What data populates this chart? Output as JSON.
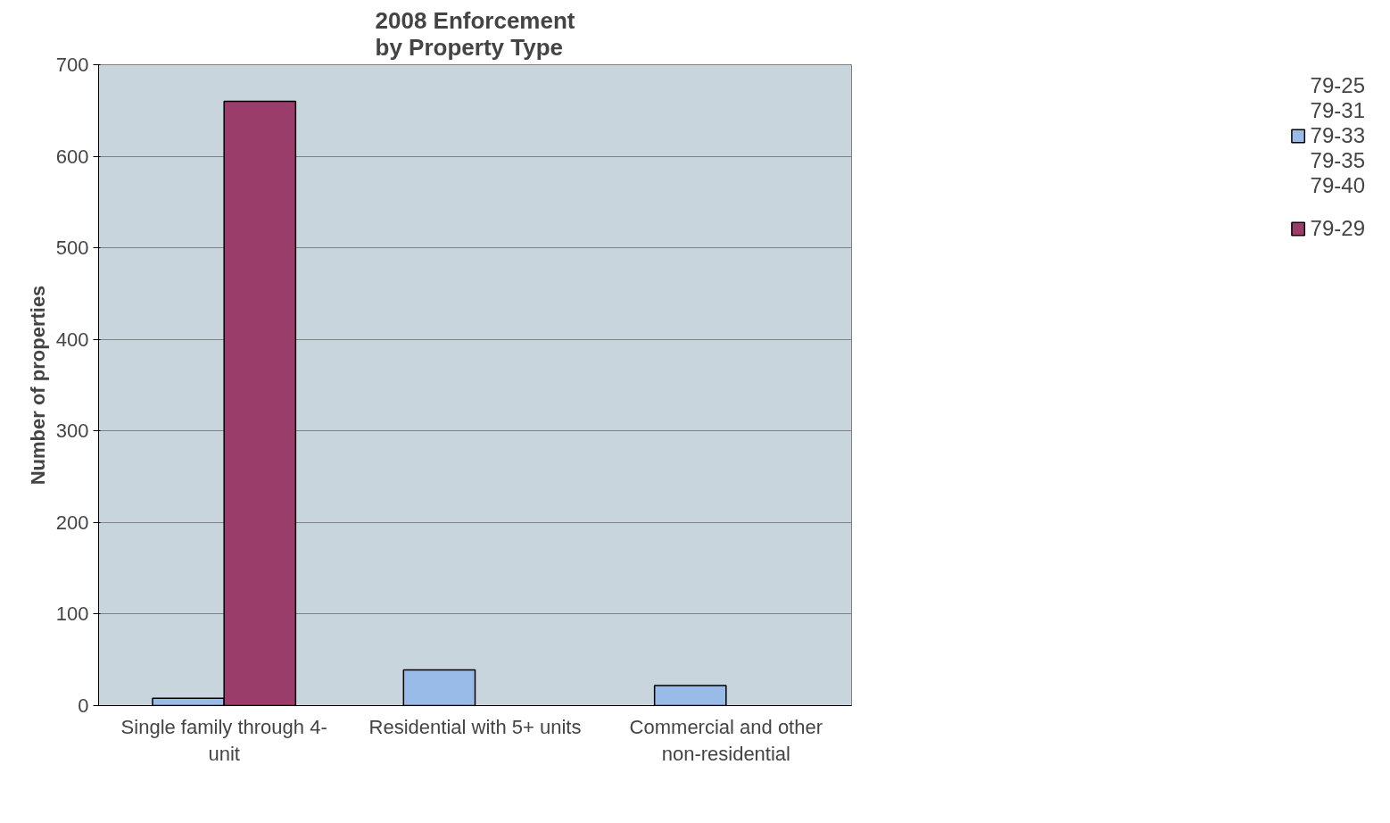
{
  "chart_data": {
    "type": "bar",
    "title": "2008 Enforcement\nby Property Type",
    "ylabel": "Number of properties",
    "categories": [
      "Single family through 4-\nunit",
      "Residential with 5+ units",
      "Commercial and other\nnon-residential"
    ],
    "series": [
      {
        "name": "79-25\n79-31\n79-33\n79-35\n79-40",
        "color": "#99bbe8",
        "values": [
          8,
          39,
          22
        ]
      },
      {
        "name": "79-29",
        "color": "#9b3d6b",
        "values": [
          660,
          null,
          null
        ]
      }
    ],
    "ylim": [
      0,
      700
    ],
    "yticks": [
      0,
      100,
      200,
      300,
      400,
      500,
      600,
      700
    ],
    "grid": "y",
    "legend": "right"
  }
}
